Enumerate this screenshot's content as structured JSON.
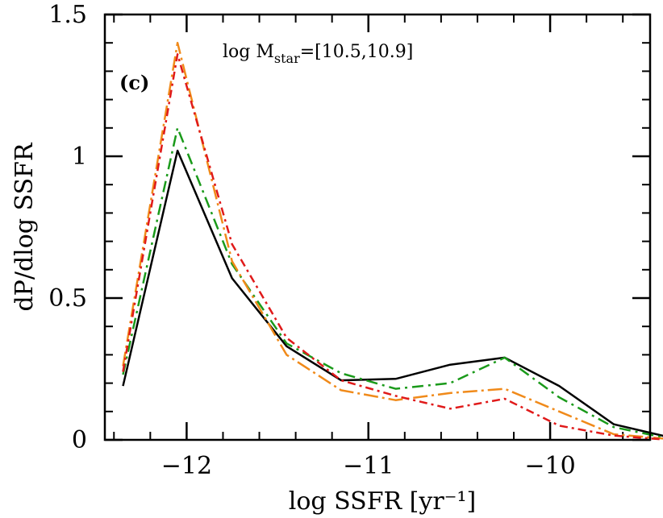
{
  "chart_data": {
    "type": "line",
    "panel_label": "(c)",
    "annotation": {
      "prefix": "log M",
      "subscript": "star",
      "suffix": "=[10.5,10.9]"
    },
    "xlabel": "log SSFR  [yr⁻¹]",
    "ylabel": "dP/dlog SSFR",
    "xlim": [
      -12.45,
      -9.45
    ],
    "ylim": [
      0,
      1.5
    ],
    "x_ticks": [
      {
        "value": -12,
        "label": "−12"
      },
      {
        "value": -11,
        "label": "−11"
      },
      {
        "value": -10,
        "label": "−10"
      }
    ],
    "y_ticks": [
      {
        "value": 0,
        "label": "0"
      },
      {
        "value": 0.5,
        "label": "0.5"
      },
      {
        "value": 1,
        "label": "1"
      },
      {
        "value": 1.5,
        "label": "1.5"
      }
    ],
    "x_minor_step": 0.2,
    "y_minor_step": 0.1,
    "grid": false,
    "series": [
      {
        "color": "#000000",
        "dash": "",
        "x": [
          -12.35,
          -12.05,
          -11.75,
          -11.45,
          -11.15,
          -10.85,
          -10.55,
          -10.25,
          -9.95,
          -9.65,
          -9.35
        ],
        "y": [
          0.19,
          1.02,
          0.57,
          0.33,
          0.21,
          0.215,
          0.265,
          0.29,
          0.19,
          0.055,
          0.01
        ]
      },
      {
        "color": "#1a9a1a",
        "dash": "14,6,3,6",
        "x": [
          -12.35,
          -12.05,
          -11.75,
          -11.45,
          -11.15,
          -10.85,
          -10.55,
          -10.25,
          -9.95,
          -9.65,
          -9.35
        ],
        "y": [
          0.23,
          1.1,
          0.62,
          0.34,
          0.235,
          0.18,
          0.2,
          0.29,
          0.15,
          0.045,
          0.005
        ]
      },
      {
        "color": "#f08a1a",
        "dash": "18,5,3,5",
        "x": [
          -12.35,
          -12.05,
          -11.75,
          -11.45,
          -11.15,
          -10.85,
          -10.55,
          -10.25,
          -9.95,
          -9.65,
          -9.35
        ],
        "y": [
          0.26,
          1.4,
          0.63,
          0.3,
          0.175,
          0.14,
          0.165,
          0.18,
          0.1,
          0.02,
          0.003
        ]
      },
      {
        "color": "#e01a1a",
        "dash": "10,5,3,5",
        "x": [
          -12.35,
          -12.05,
          -11.75,
          -11.45,
          -11.15,
          -10.85,
          -10.55,
          -10.25,
          -9.95,
          -9.65,
          -9.35
        ],
        "y": [
          0.24,
          1.36,
          0.69,
          0.36,
          0.21,
          0.155,
          0.11,
          0.145,
          0.05,
          0.015,
          0.0
        ]
      }
    ]
  }
}
